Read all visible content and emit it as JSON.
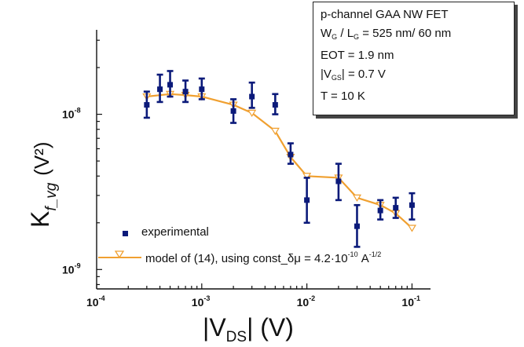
{
  "info_box": {
    "line1": "p-channel GAA NW FET",
    "line2_pre": "W",
    "line2_sub1": "G",
    "line2_mid": " / L",
    "line2_sub2": "G",
    "line2_post": " = 525 nm/ 60 nm",
    "line3": "EOT = 1.9 nm",
    "line4_pre": "|V",
    "line4_sub": "GS",
    "line4_post": "| = 0.7 V",
    "line5": "T = 10 K"
  },
  "legend": {
    "experimental": "experimental",
    "model_pre": "model of (14), using const_δμ = 4.2·10",
    "model_exp": "-10",
    "model_mid": " A",
    "model_exp2": "-1/2"
  },
  "axes": {
    "ylabel_main": "K",
    "ylabel_sub": "f_vg",
    "ylabel_unit": "(V²)",
    "xlabel_pre": "|V",
    "xlabel_sub": "DS",
    "xlabel_post": "| (V)"
  },
  "colors": {
    "experimental": "#0b1a7a",
    "model": "#f0a030",
    "axis": "#111111"
  },
  "chart_data": {
    "type": "scatter",
    "x_scale": "log",
    "y_scale": "log",
    "xlim": [
      0.0001,
      0.15
    ],
    "ylim": [
      7.5e-10,
      3.5e-08
    ],
    "x_ticks": [
      {
        "value": 0.0001,
        "base": "10",
        "exp": "-4"
      },
      {
        "value": 0.001,
        "base": "10",
        "exp": "-3"
      },
      {
        "value": 0.01,
        "base": "10",
        "exp": "-2"
      },
      {
        "value": 0.1,
        "base": "10",
        "exp": "-1"
      }
    ],
    "y_ticks": [
      {
        "value": 1e-09,
        "base": "10",
        "exp": "-9"
      },
      {
        "value": 1e-08,
        "base": "10",
        "exp": "-8"
      }
    ],
    "series": [
      {
        "name": "experimental",
        "kind": "points_with_error_bars",
        "x": [
          0.0003,
          0.0004,
          0.0005,
          0.0007,
          0.001,
          0.002,
          0.003,
          0.005,
          0.007,
          0.01,
          0.02,
          0.03,
          0.05,
          0.07,
          0.1
        ],
        "y": [
          1.15e-08,
          1.45e-08,
          1.55e-08,
          1.4e-08,
          1.45e-08,
          1.05e-08,
          1.3e-08,
          1.15e-08,
          5.5e-09,
          2.8e-09,
          3.7e-09,
          1.9e-09,
          2.4e-09,
          2.5e-09,
          2.6e-09
        ],
        "y_low": [
          9.5e-09,
          1.2e-08,
          1.3e-08,
          1.2e-08,
          1.25e-08,
          8.8e-09,
          1.1e-08,
          1e-08,
          4.8e-09,
          2e-09,
          2.8e-09,
          1.4e-09,
          2.1e-09,
          2.15e-09,
          2.1e-09
        ],
        "y_high": [
          1.4e-08,
          1.8e-08,
          1.9e-08,
          1.65e-08,
          1.7e-08,
          1.25e-08,
          1.6e-08,
          1.35e-08,
          6.5e-09,
          3.9e-09,
          4.8e-09,
          2.6e-09,
          2.8e-09,
          2.9e-09,
          3.1e-09
        ]
      },
      {
        "name": "model of (14), using const_δμ = 4.2·10-10 A-1/2",
        "kind": "line_with_markers",
        "x": [
          0.0003,
          0.0005,
          0.0007,
          0.001,
          0.002,
          0.003,
          0.005,
          0.007,
          0.01,
          0.02,
          0.03,
          0.05,
          0.07,
          0.1
        ],
        "y": [
          1.3e-08,
          1.35e-08,
          1.33e-08,
          1.3e-08,
          1.15e-08,
          1.02e-08,
          7.8e-09,
          5.3e-09,
          4e-09,
          3.9e-09,
          2.9e-09,
          2.6e-09,
          2.3e-09,
          1.85e-09
        ]
      }
    ]
  }
}
